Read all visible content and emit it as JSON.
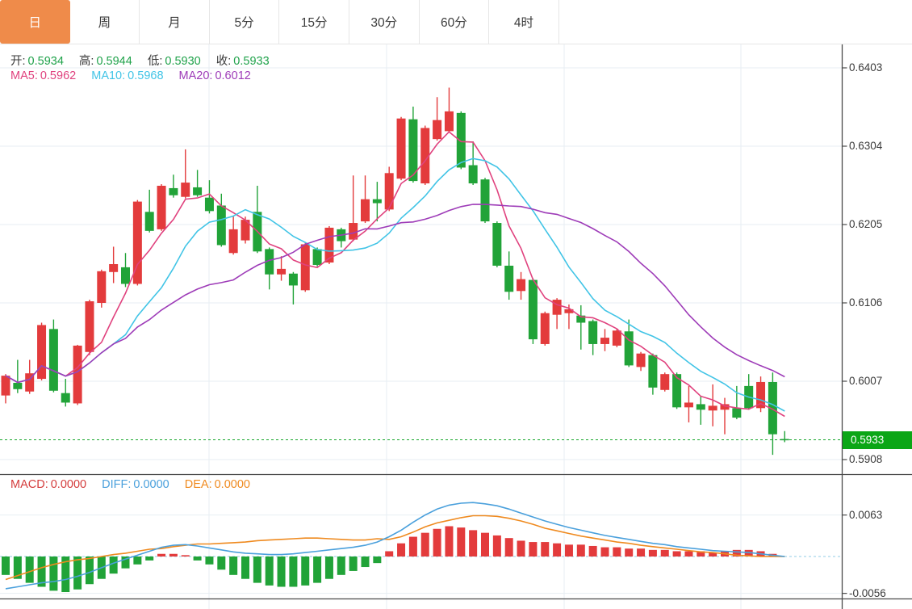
{
  "tabs": {
    "items": [
      {
        "label": "日",
        "active": true
      },
      {
        "label": "周",
        "active": false
      },
      {
        "label": "月",
        "active": false
      },
      {
        "label": "5分",
        "active": false
      },
      {
        "label": "15分",
        "active": false
      },
      {
        "label": "30分",
        "active": false
      },
      {
        "label": "60分",
        "active": false
      },
      {
        "label": "4时",
        "active": false
      }
    ]
  },
  "ohlc_bar": {
    "open_label": "开:",
    "open_value": "0.5934",
    "high_label": "高:",
    "high_value": "0.5944",
    "low_label": "低:",
    "low_value": "0.5930",
    "close_label": "收:",
    "close_value": "0.5933"
  },
  "ma_bar": {
    "ma5_label": "MA5:",
    "ma5_value": "0.5962",
    "ma10_label": "MA10:",
    "ma10_value": "0.5968",
    "ma20_label": "MA20:",
    "ma20_value": "0.6012"
  },
  "macd_bar": {
    "macd_label": "MACD:",
    "macd_value": "0.0000",
    "diff_label": "DIFF:",
    "diff_value": "0.0000",
    "dea_label": "DEA:",
    "dea_value": "0.0000"
  },
  "price_axis": {
    "tick_labels": [
      "0.6403",
      "0.6304",
      "0.6205",
      "0.6106",
      "0.6007",
      "0.5908"
    ],
    "last_price_label": "0.5933"
  },
  "macd_axis": {
    "tick_labels": [
      "0.0063",
      "-0.0056"
    ]
  },
  "colors": {
    "up_red": "#e33b3c",
    "down_green": "#21a338",
    "ma5": "#e0427e",
    "ma10": "#41c4e6",
    "ma20": "#9e3cb8",
    "diff_line": "#4aa0dc",
    "dea_line": "#ef8a1f",
    "macd_label_red": "#d43c3c",
    "accent_tab": "#ef8b4a",
    "badge_bg": "#0ba616",
    "price_line_green": "#16a62a",
    "zero_dash_blue": "#a8d8ea",
    "grid": "#e7eef3",
    "axis_text": "#3a3a3a",
    "border_dark": "#4a4a4a",
    "value_green": "#1fa24a",
    "tab_text": "#3c3c3c"
  },
  "chart_data": [
    {
      "type": "candlestick",
      "title": "daily candlestick panel",
      "price_ticks": [
        0.6403,
        0.6304,
        0.6205,
        0.6106,
        0.6007,
        0.5908
      ],
      "last_price": 0.5933,
      "ma_periods": [
        5,
        10,
        20
      ],
      "candles_ohlc": [
        [
          0.5989,
          0.6016,
          0.5979,
          0.6014
        ],
        [
          0.6005,
          0.6034,
          0.5992,
          0.5997
        ],
        [
          0.5994,
          0.6034,
          0.5991,
          0.6017
        ],
        [
          0.601,
          0.6081,
          0.6008,
          0.6078
        ],
        [
          0.6073,
          0.6085,
          0.5993,
          0.5995
        ],
        [
          0.5992,
          0.601,
          0.5975,
          0.598
        ],
        [
          0.5979,
          0.6053,
          0.5977,
          0.6052
        ],
        [
          0.6044,
          0.611,
          0.604,
          0.6108
        ],
        [
          0.6106,
          0.6148,
          0.61,
          0.6146
        ],
        [
          0.6145,
          0.6177,
          0.6131,
          0.6155
        ],
        [
          0.6151,
          0.6169,
          0.6126,
          0.613
        ],
        [
          0.613,
          0.6236,
          0.6128,
          0.6234
        ],
        [
          0.6221,
          0.6249,
          0.6195,
          0.6197
        ],
        [
          0.6199,
          0.6256,
          0.6197,
          0.6254
        ],
        [
          0.6251,
          0.6268,
          0.6239,
          0.6242
        ],
        [
          0.624,
          0.63,
          0.6238,
          0.6258
        ],
        [
          0.6252,
          0.6274,
          0.624,
          0.6242
        ],
        [
          0.6239,
          0.6261,
          0.6219,
          0.6222
        ],
        [
          0.6229,
          0.6244,
          0.6177,
          0.6179
        ],
        [
          0.6169,
          0.6216,
          0.6167,
          0.6199
        ],
        [
          0.6185,
          0.6215,
          0.6181,
          0.6211
        ],
        [
          0.6221,
          0.6254,
          0.6169,
          0.6171
        ],
        [
          0.6174,
          0.6176,
          0.6123,
          0.6142
        ],
        [
          0.6142,
          0.6165,
          0.6134,
          0.6149
        ],
        [
          0.6143,
          0.6145,
          0.6104,
          0.6128
        ],
        [
          0.6122,
          0.6182,
          0.612,
          0.618
        ],
        [
          0.6174,
          0.6176,
          0.6152,
          0.6154
        ],
        [
          0.6157,
          0.6203,
          0.6155,
          0.6201
        ],
        [
          0.6199,
          0.6201,
          0.6176,
          0.6184
        ],
        [
          0.6186,
          0.6267,
          0.6184,
          0.6207
        ],
        [
          0.6209,
          0.6267,
          0.6207,
          0.6237
        ],
        [
          0.6237,
          0.6259,
          0.6209,
          0.6232
        ],
        [
          0.6224,
          0.6278,
          0.6222,
          0.627
        ],
        [
          0.6263,
          0.6341,
          0.6261,
          0.6339
        ],
        [
          0.6338,
          0.6354,
          0.6258,
          0.626
        ],
        [
          0.6257,
          0.633,
          0.6255,
          0.6327
        ],
        [
          0.6313,
          0.6366,
          0.6311,
          0.6337
        ],
        [
          0.6323,
          0.6378,
          0.6321,
          0.6348
        ],
        [
          0.6346,
          0.6348,
          0.6275,
          0.6277
        ],
        [
          0.628,
          0.631,
          0.6255,
          0.6257
        ],
        [
          0.6262,
          0.6264,
          0.6207,
          0.6209
        ],
        [
          0.6207,
          0.6209,
          0.6151,
          0.6153
        ],
        [
          0.6153,
          0.6171,
          0.611,
          0.612
        ],
        [
          0.6121,
          0.6145,
          0.611,
          0.6136
        ],
        [
          0.6135,
          0.6137,
          0.6054,
          0.606
        ],
        [
          0.6054,
          0.6095,
          0.6052,
          0.6093
        ],
        [
          0.6091,
          0.6112,
          0.6073,
          0.611
        ],
        [
          0.6093,
          0.6104,
          0.6073,
          0.6098
        ],
        [
          0.609,
          0.6103,
          0.6047,
          0.6081
        ],
        [
          0.6083,
          0.6085,
          0.604,
          0.6054
        ],
        [
          0.6054,
          0.6073,
          0.6045,
          0.6062
        ],
        [
          0.6052,
          0.6073,
          0.605,
          0.6071
        ],
        [
          0.607,
          0.6085,
          0.6025,
          0.6027
        ],
        [
          0.6025,
          0.6044,
          0.602,
          0.6042
        ],
        [
          0.604,
          0.6042,
          0.599,
          0.5999
        ],
        [
          0.5996,
          0.6018,
          0.5994,
          0.6016
        ],
        [
          0.6016,
          0.6018,
          0.5972,
          0.5974
        ],
        [
          0.5974,
          0.6001,
          0.5955,
          0.598
        ],
        [
          0.5978,
          0.5988,
          0.5952,
          0.5971
        ],
        [
          0.597,
          0.6003,
          0.595,
          0.5976
        ],
        [
          0.5971,
          0.5986,
          0.594,
          0.5978
        ],
        [
          0.5973,
          0.6001,
          0.5959,
          0.5961
        ],
        [
          0.6001,
          0.6016,
          0.5971,
          0.5973
        ],
        [
          0.5973,
          0.6013,
          0.5968,
          0.6006
        ],
        [
          0.6006,
          0.6018,
          0.5914,
          0.594
        ],
        [
          0.5934,
          0.5944,
          0.593,
          0.5933
        ]
      ]
    },
    {
      "type": "bar",
      "title": "MACD panel (histogram = 2*(DIFF-DEA), DIFF/DEA lines)",
      "ticks": [
        0.0063,
        -0.0056
      ],
      "diff": [
        -0.0049,
        -0.0046,
        -0.0043,
        -0.004,
        -0.0038,
        -0.0035,
        -0.003,
        -0.0024,
        -0.0017,
        -0.001,
        -0.0004,
        0.0002,
        0.0008,
        0.0014,
        0.0017,
        0.0018,
        0.0016,
        0.0013,
        0.001,
        0.0007,
        0.0005,
        0.0004,
        0.0003,
        0.0003,
        0.0004,
        0.0006,
        0.0008,
        0.001,
        0.0012,
        0.0014,
        0.0017,
        0.0022,
        0.003,
        0.004,
        0.0052,
        0.0063,
        0.0072,
        0.0078,
        0.0081,
        0.0082,
        0.008,
        0.0077,
        0.0072,
        0.0066,
        0.006,
        0.0054,
        0.0049,
        0.0044,
        0.004,
        0.0036,
        0.0032,
        0.0029,
        0.0026,
        0.0023,
        0.002,
        0.0018,
        0.0015,
        0.0013,
        0.0011,
        0.0009,
        0.0008,
        0.0007,
        0.0006,
        0.0004,
        0.0002,
        0.0
      ],
      "dea": [
        -0.0035,
        -0.0029,
        -0.0023,
        -0.0017,
        -0.0012,
        -0.0008,
        -0.0005,
        -0.0003,
        0.0,
        0.0003,
        0.0005,
        0.0008,
        0.0011,
        0.0012,
        0.0015,
        0.0017,
        0.0019,
        0.0019,
        0.002,
        0.0021,
        0.0022,
        0.0024,
        0.0025,
        0.0026,
        0.0027,
        0.0028,
        0.0028,
        0.0027,
        0.0026,
        0.0025,
        0.0025,
        0.0027,
        0.0026,
        0.003,
        0.0037,
        0.0045,
        0.0051,
        0.0055,
        0.0059,
        0.0062,
        0.0062,
        0.0061,
        0.0058,
        0.0054,
        0.0049,
        0.0043,
        0.0039,
        0.0035,
        0.0031,
        0.0028,
        0.0025,
        0.0022,
        0.002,
        0.0017,
        0.0015,
        0.0013,
        0.0011,
        0.0009,
        0.0007,
        0.0006,
        0.0004,
        0.0002,
        0.0001,
        0.0,
        0.0,
        0.0
      ]
    }
  ]
}
